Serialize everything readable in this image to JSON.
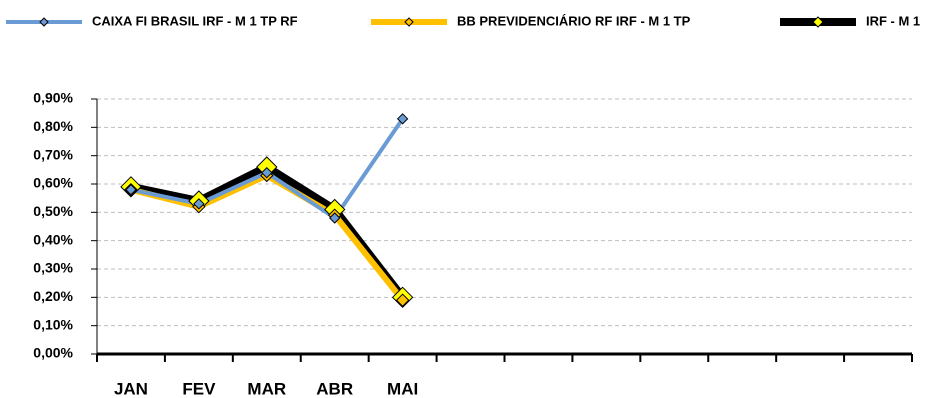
{
  "chart_data": {
    "type": "line",
    "categories": [
      "JAN",
      "FEV",
      "MAR",
      "ABR",
      "MAI",
      null,
      null,
      null,
      null,
      null,
      null,
      null
    ],
    "series": [
      {
        "name": "CAIXA FI BRASIL IRF - M 1 TP RF",
        "color": "#6a9bd5",
        "marker_color": "#6a9bd5",
        "values": [
          0.58,
          0.53,
          0.64,
          0.48,
          0.83,
          null,
          null,
          null,
          null,
          null,
          null,
          null
        ]
      },
      {
        "name": "BB PREVIDENCIÁRIO RF IRF - M 1 TP",
        "color": "#ffc000",
        "marker_color": "#ffc000",
        "values": [
          0.58,
          0.52,
          0.63,
          0.49,
          0.19,
          null,
          null,
          null,
          null,
          null,
          null,
          null
        ]
      },
      {
        "name": "IRF - M 1",
        "color": "#000000",
        "marker_color": "#ffff00",
        "values": [
          0.59,
          0.54,
          0.66,
          0.51,
          0.2,
          null,
          null,
          null,
          null,
          null,
          null,
          null
        ]
      }
    ],
    "ylim": [
      0,
      0.9
    ],
    "yticks": [
      {
        "value": 0,
        "label": "0,00%"
      },
      {
        "value": 0.1,
        "label": "0,10%"
      },
      {
        "value": 0.2,
        "label": "0,20%"
      },
      {
        "value": 0.3,
        "label": "0,30%"
      },
      {
        "value": 0.4,
        "label": "0,40%"
      },
      {
        "value": 0.5,
        "label": "0,50%"
      },
      {
        "value": 0.6,
        "label": "0,60%"
      },
      {
        "value": 0.7,
        "label": "0,70%"
      },
      {
        "value": 0.8,
        "label": "0,80%"
      },
      {
        "value": 0.9,
        "label": "0,90%"
      }
    ],
    "grid": true
  }
}
